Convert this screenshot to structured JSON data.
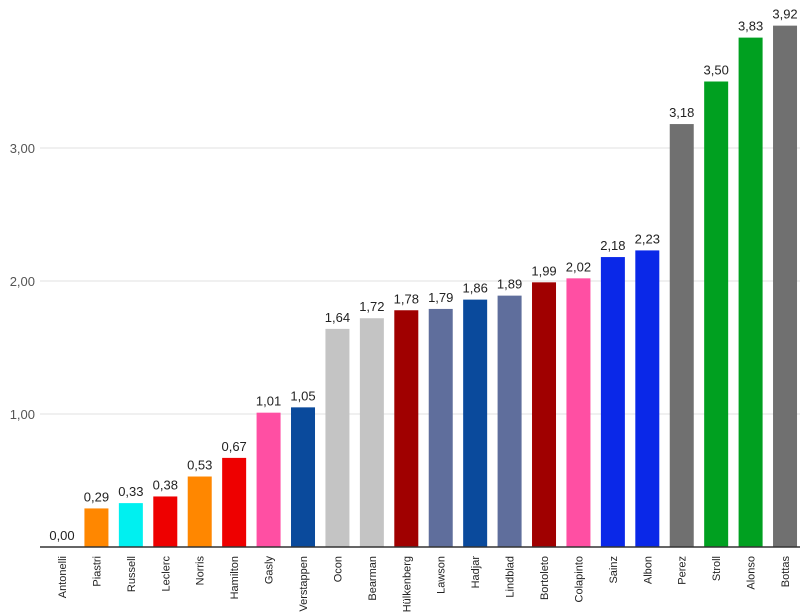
{
  "chart_data": {
    "type": "bar",
    "title": "",
    "xlabel": "",
    "ylabel": "",
    "ylim": [
      0,
      4
    ],
    "yticks": [
      "1,00",
      "2,00",
      "3,00"
    ],
    "ytick_values": [
      1,
      2,
      3
    ],
    "grid": true,
    "categories": [
      "Antonelli",
      "Piastri",
      "Russell",
      "Leclerc",
      "Norris",
      "Hamilton",
      "Gasly",
      "Verstappen",
      "Ocon",
      "Bearman",
      "Hülkenberg",
      "Lawson",
      "Hadjar",
      "Lindblad",
      "Bortoleto",
      "Colapinto",
      "Sainz",
      "Albon",
      "Perez",
      "Stroll",
      "Alonso",
      "Bottas"
    ],
    "values": [
      0.0,
      0.29,
      0.33,
      0.38,
      0.53,
      0.67,
      1.01,
      1.05,
      1.64,
      1.72,
      1.78,
      1.79,
      1.86,
      1.89,
      1.99,
      2.02,
      2.18,
      2.23,
      3.18,
      3.5,
      3.83,
      3.92
    ],
    "value_labels": [
      "0,00",
      "0,29",
      "0,33",
      "0,38",
      "0,53",
      "0,67",
      "1,01",
      "1,05",
      "1,64",
      "1,72",
      "1,78",
      "1,79",
      "1,86",
      "1,89",
      "1,99",
      "2,02",
      "2,18",
      "2,23",
      "3,18",
      "3,50",
      "3,83",
      "3,92"
    ],
    "colors": [
      "#00d2be",
      "#ff8700",
      "#00f0f0",
      "#ee0000",
      "#ff8700",
      "#ee0000",
      "#ff4fa3",
      "#0a4a9c",
      "#c4c4c4",
      "#c4c4c4",
      "#a00000",
      "#5f6e9c",
      "#0a4a9c",
      "#5f6e9c",
      "#a00000",
      "#ff4fa3",
      "#0a28e8",
      "#0a28e8",
      "#707070",
      "#00a020",
      "#00a020",
      "#707070"
    ]
  }
}
